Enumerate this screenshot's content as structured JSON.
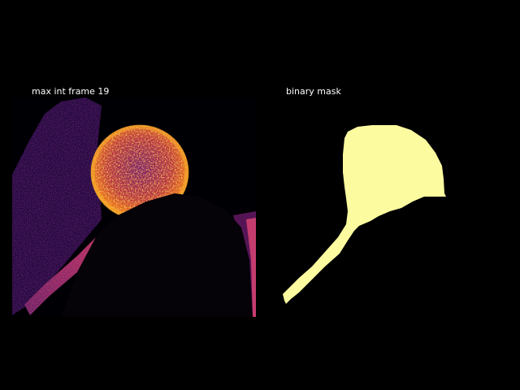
{
  "figure": {
    "background": "#000000",
    "left_panel": {
      "title": "max int frame 19",
      "colormap": "inferno",
      "colors": {
        "background_cell": "#2a0b4a",
        "membrane": "#8c2a7a",
        "bright_core": "#f0a020",
        "hot_spot": "#fcd060",
        "dark_overlap": "#050208"
      }
    },
    "right_panel": {
      "title": "binary mask",
      "colors": {
        "mask_foreground": "#fdfba0",
        "mask_background": "#000000"
      }
    }
  }
}
